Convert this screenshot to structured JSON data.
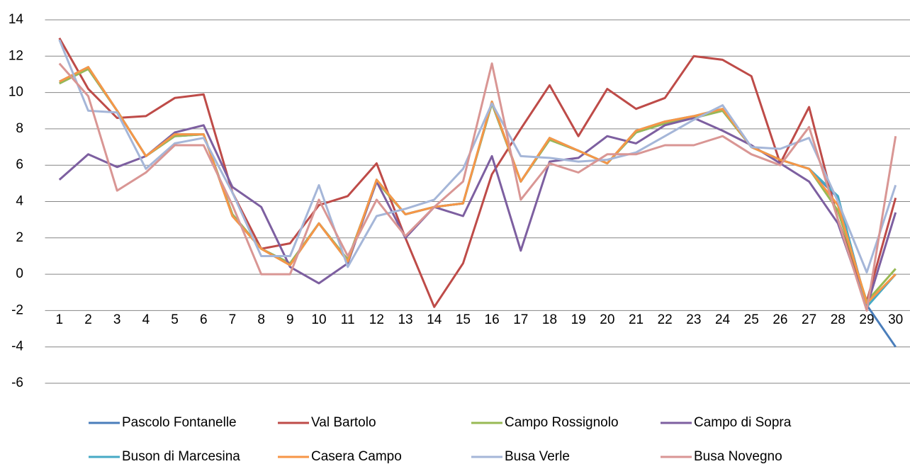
{
  "chart_data": {
    "type": "line",
    "categories": [
      "1",
      "2",
      "3",
      "4",
      "5",
      "6",
      "7",
      "8",
      "9",
      "10",
      "11",
      "12",
      "13",
      "14",
      "15",
      "16",
      "17",
      "18",
      "19",
      "20",
      "21",
      "22",
      "23",
      "24",
      "25",
      "26",
      "27",
      "28",
      "29",
      "30"
    ],
    "series": [
      {
        "name": "Pascolo Fontanelle",
        "color": "#4a7ebb",
        "values": [
          10.5,
          11.3,
          9,
          6.5,
          7.6,
          7.7,
          3.3,
          1.4,
          0.6,
          2.8,
          0.8,
          5.1,
          3.3,
          3.7,
          3.9,
          9.4,
          5.1,
          7.4,
          6.8,
          6.1,
          7.8,
          8.3,
          8.6,
          9,
          7,
          6.3,
          5.8,
          4.2,
          -1.7,
          -4
        ]
      },
      {
        "name": "Val Bartolo",
        "color": "#be4b48",
        "values": [
          13,
          10.2,
          8.6,
          8.7,
          9.7,
          9.9,
          4.5,
          1.4,
          1.7,
          3.8,
          4.3,
          6.1,
          2,
          -1.8,
          0.6,
          5.5,
          8,
          10.4,
          7.6,
          10.2,
          9.1,
          9.7,
          12,
          11.8,
          10.9,
          6.1,
          9.2,
          3,
          -1.5,
          4.2
        ]
      },
      {
        "name": "Campo Rossignolo",
        "color": "#98b954",
        "values": [
          10.5,
          11.3,
          9,
          6.5,
          7.6,
          7.7,
          3.3,
          1.4,
          0.6,
          2.8,
          0.8,
          5.1,
          3.3,
          3.7,
          3.9,
          9.4,
          5.1,
          7.4,
          6.8,
          6.1,
          7.8,
          8.3,
          8.6,
          9,
          7,
          6.3,
          5.8,
          3.5,
          -1.5,
          0.3
        ]
      },
      {
        "name": "Campo di Sopra",
        "color": "#7d5fa0",
        "values": [
          5.2,
          6.6,
          5.9,
          6.5,
          7.8,
          8.2,
          4.8,
          3.7,
          0.4,
          -0.5,
          0.6,
          5.1,
          2,
          3.7,
          3.2,
          6.5,
          1.3,
          6.2,
          6.4,
          7.6,
          7.2,
          8.2,
          8.6,
          7.9,
          7.1,
          6.1,
          5.1,
          2.8,
          -1.8,
          3.4
        ]
      },
      {
        "name": "Buson di Marcesina",
        "color": "#46aac5",
        "values": [
          10.6,
          11.4,
          9,
          6.5,
          7.7,
          7.7,
          3.2,
          1.4,
          0.5,
          2.8,
          0.7,
          5.2,
          3.3,
          3.7,
          3.9,
          9.5,
          5.1,
          7.5,
          6.8,
          6.1,
          7.9,
          8.4,
          8.7,
          9.1,
          7,
          6.3,
          5.8,
          4.3,
          -1.8,
          0
        ]
      },
      {
        "name": "Casera Campo",
        "color": "#f79646",
        "values": [
          10.6,
          11.4,
          9,
          6.5,
          7.7,
          7.7,
          3.2,
          1.4,
          0.5,
          2.8,
          0.7,
          5.2,
          3.3,
          3.7,
          3.9,
          9.5,
          5.1,
          7.5,
          6.8,
          6.1,
          7.9,
          8.4,
          8.7,
          9.1,
          7,
          6.3,
          5.8,
          3.8,
          -1.6,
          0
        ]
      },
      {
        "name": "Busa Verle",
        "color": "#a5b6d8",
        "values": [
          12.9,
          9,
          8.9,
          5.8,
          7.2,
          7.5,
          4.5,
          1,
          1,
          4.9,
          0.4,
          3.2,
          3.6,
          4.1,
          5.8,
          9.4,
          6.5,
          6.4,
          6.2,
          6.3,
          6.7,
          7.6,
          8.5,
          9.3,
          7,
          6.9,
          7.5,
          4,
          0.1,
          4.9
        ]
      },
      {
        "name": "Busa Novegno",
        "color": "#d99694",
        "values": [
          11.6,
          9.8,
          4.6,
          5.6,
          7.1,
          7.1,
          3.8,
          0,
          0,
          4.1,
          1,
          4.1,
          2.1,
          3.7,
          5.1,
          11.6,
          4.1,
          6.1,
          5.6,
          6.6,
          6.6,
          7.1,
          7.1,
          7.6,
          6.6,
          6,
          8.1,
          3,
          -2,
          7.6
        ]
      }
    ],
    "ylim": [
      -6,
      14
    ],
    "yticks": [
      -6,
      -4,
      -2,
      0,
      2,
      4,
      6,
      8,
      10,
      12,
      14
    ],
    "grid": true,
    "legend": "bottom"
  }
}
